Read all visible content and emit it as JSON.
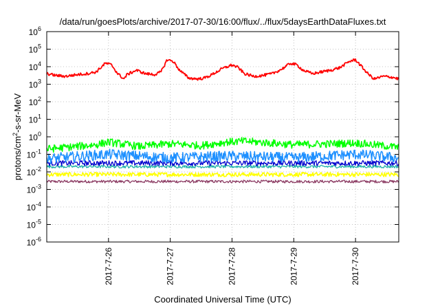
{
  "chart_data": {
    "type": "line",
    "title": "/data/run/goesPlots/archive/2017-07-30/16:00/flux/../flux/5daysEarthDataFluxes.txt",
    "xlabel": "Coordinated Universal Time (UTC)",
    "ylabel_prefix": "protons/cm",
    "ylabel_sup": "2",
    "ylabel_suffix": "-s-sr-MeV",
    "yscale": "log",
    "ylim_exponents": [
      -6,
      6
    ],
    "y_tick_labels": [
      {
        "base": "10",
        "exp": "6"
      },
      {
        "base": "10",
        "exp": "5"
      },
      {
        "base": "10",
        "exp": "4"
      },
      {
        "base": "10",
        "exp": "3"
      },
      {
        "base": "10",
        "exp": "2"
      },
      {
        "base": "10",
        "exp": "1"
      },
      {
        "base": "10",
        "exp": "0"
      },
      {
        "base": "10",
        "exp": "-1"
      },
      {
        "base": "10",
        "exp": "-2"
      },
      {
        "base": "10",
        "exp": "-3"
      },
      {
        "base": "10",
        "exp": "-4"
      },
      {
        "base": "10",
        "exp": "-5"
      },
      {
        "base": "10",
        "exp": "-6"
      }
    ],
    "xlim_days": [
      0,
      5.7
    ],
    "x_ticks": [
      {
        "day": 1,
        "label": "2017-7-26"
      },
      {
        "day": 2,
        "label": "2017-7-27"
      },
      {
        "day": 3,
        "label": "2017-7-28"
      },
      {
        "day": 4,
        "label": "2017-7-29"
      },
      {
        "day": 5,
        "label": "2017-7-30"
      }
    ],
    "grid": true,
    "series": [
      {
        "color": "#ff0000",
        "stroke_width": 1.8,
        "noise": 0.08,
        "points": [
          [
            0.0,
            3.6
          ],
          [
            0.15,
            3.5
          ],
          [
            0.3,
            3.45
          ],
          [
            0.5,
            3.55
          ],
          [
            0.65,
            3.6
          ],
          [
            0.8,
            3.7
          ],
          [
            0.95,
            4.2
          ],
          [
            1.05,
            4.1
          ],
          [
            1.15,
            3.6
          ],
          [
            1.25,
            3.3
          ],
          [
            1.3,
            3.55
          ],
          [
            1.45,
            3.8
          ],
          [
            1.6,
            3.6
          ],
          [
            1.75,
            3.55
          ],
          [
            1.85,
            3.7
          ],
          [
            1.95,
            4.4
          ],
          [
            2.05,
            4.3
          ],
          [
            2.15,
            3.8
          ],
          [
            2.3,
            3.35
          ],
          [
            2.45,
            3.3
          ],
          [
            2.55,
            3.35
          ],
          [
            2.65,
            3.5
          ],
          [
            2.75,
            3.7
          ],
          [
            2.85,
            3.9
          ],
          [
            3.0,
            4.1
          ],
          [
            3.1,
            3.95
          ],
          [
            3.2,
            3.6
          ],
          [
            3.35,
            3.45
          ],
          [
            3.5,
            3.5
          ],
          [
            3.65,
            3.6
          ],
          [
            3.8,
            3.85
          ],
          [
            3.95,
            4.2
          ],
          [
            4.05,
            4.1
          ],
          [
            4.15,
            3.8
          ],
          [
            4.3,
            3.6
          ],
          [
            4.45,
            3.7
          ],
          [
            4.6,
            3.8
          ],
          [
            4.75,
            3.95
          ],
          [
            4.9,
            4.3
          ],
          [
            5.0,
            4.4
          ],
          [
            5.1,
            4.0
          ],
          [
            5.2,
            3.6
          ],
          [
            5.3,
            3.3
          ],
          [
            5.45,
            3.45
          ],
          [
            5.6,
            3.4
          ],
          [
            5.7,
            3.3
          ]
        ]
      },
      {
        "color": "#00ff00",
        "stroke_width": 1.5,
        "noise": 0.22,
        "points": [
          [
            0.0,
            -0.7
          ],
          [
            0.8,
            -0.45
          ],
          [
            1.0,
            -0.3
          ],
          [
            1.5,
            -0.55
          ],
          [
            2.0,
            -0.4
          ],
          [
            2.5,
            -0.5
          ],
          [
            2.9,
            -0.3
          ],
          [
            3.2,
            -0.25
          ],
          [
            4.0,
            -0.45
          ],
          [
            4.6,
            -0.4
          ],
          [
            5.0,
            -0.35
          ],
          [
            5.7,
            -0.6
          ]
        ]
      },
      {
        "color": "#1e90ff",
        "stroke_width": 1.5,
        "noise": 0.3,
        "points": [
          [
            0.0,
            -1.25
          ],
          [
            1.0,
            -1.0
          ],
          [
            2.0,
            -1.2
          ],
          [
            3.0,
            -1.1
          ],
          [
            4.0,
            -1.2
          ],
          [
            5.0,
            -1.0
          ],
          [
            5.7,
            -1.2
          ]
        ]
      },
      {
        "color": "#0000cd",
        "stroke_width": 1.3,
        "noise": 0.15,
        "points": [
          [
            0.0,
            -1.5
          ],
          [
            5.7,
            -1.5
          ]
        ]
      },
      {
        "color": "#20b2aa",
        "stroke_width": 1.3,
        "noise": 0.08,
        "points": [
          [
            0.0,
            -1.7
          ],
          [
            5.7,
            -1.7
          ]
        ]
      },
      {
        "color": "#ffff00",
        "stroke_width": 1.6,
        "noise": 0.12,
        "points": [
          [
            0.0,
            -2.15
          ],
          [
            5.7,
            -2.15
          ]
        ]
      },
      {
        "color": "#8b3a62",
        "stroke_width": 1.3,
        "noise": 0.08,
        "points": [
          [
            0.0,
            -2.55
          ],
          [
            5.7,
            -2.55
          ]
        ]
      }
    ]
  }
}
